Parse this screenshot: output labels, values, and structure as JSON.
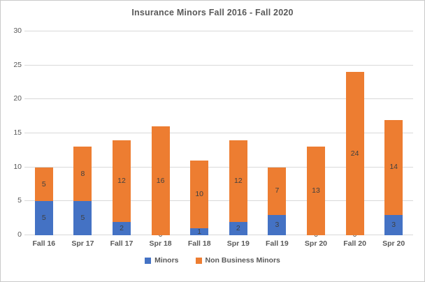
{
  "chart_data": {
    "type": "bar",
    "stacked": true,
    "title": "Insurance Minors Fall 2016 - Fall 2020",
    "categories": [
      "Fall 16",
      "Spr 17",
      "Fall 17",
      "Spr 18",
      "Fall 18",
      "Spr 19",
      "Fall 19",
      "Spr 20",
      "Fall 20",
      "Spr 20"
    ],
    "series": [
      {
        "name": "Minors",
        "color": "#4472C4",
        "values": [
          5,
          5,
          2,
          0,
          1,
          2,
          3,
          0,
          0,
          3
        ]
      },
      {
        "name": "Non Business Minors",
        "color": "#ED7D31",
        "values": [
          5,
          8,
          12,
          16,
          10,
          12,
          7,
          13,
          24,
          14
        ]
      }
    ],
    "totals": [
      10,
      13,
      14,
      16,
      11,
      14,
      10,
      13,
      24,
      17
    ],
    "xlabel": "",
    "ylabel": "",
    "ylim": [
      0,
      30
    ],
    "yticks": [
      0,
      5,
      10,
      15,
      20,
      25,
      30
    ],
    "grid": true,
    "data_labels": true,
    "legend_position": "bottom"
  },
  "colors": {
    "series_minors": "#4472C4",
    "series_non_business_minors": "#ED7D31",
    "gridline": "#D9D9D9",
    "axis_text": "#595959",
    "data_label": "#3F3F3F",
    "title_text": "#595959",
    "chart_border": "#C9C9C9",
    "background": "#FFFFFF"
  }
}
